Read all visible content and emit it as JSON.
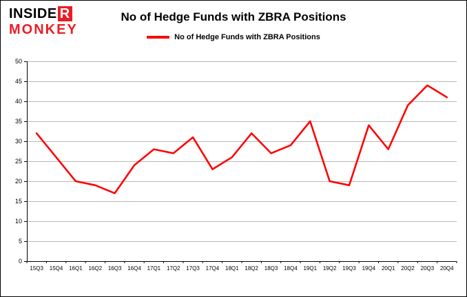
{
  "logo": {
    "insider_prefix": "INSIDE",
    "insider_boxed_letter": "R",
    "monkey": "MONKEY",
    "red": "#ed1c24"
  },
  "title": "No of Hedge Funds with ZBRA Positions",
  "legend": {
    "label": "No of Hedge Funds with ZBRA Positions",
    "color": "#ff0000"
  },
  "chart_data": {
    "type": "line",
    "title": "No of Hedge Funds with ZBRA Positions",
    "categories": [
      "15Q3",
      "15Q4",
      "16Q1",
      "16Q2",
      "16Q3",
      "16Q4",
      "17Q1",
      "17Q2",
      "17Q3",
      "17Q4",
      "18Q1",
      "18Q2",
      "18Q3",
      "18Q4",
      "19Q1",
      "19Q2",
      "19Q3",
      "19Q4",
      "20Q1",
      "20Q2",
      "20Q3",
      "20Q4"
    ],
    "series": [
      {
        "name": "No of Hedge Funds with ZBRA Positions",
        "color": "#ff0000",
        "values": [
          32,
          26,
          20,
          19,
          17,
          24,
          28,
          27,
          31,
          23,
          26,
          32,
          27,
          29,
          35,
          20,
          19,
          34,
          28,
          39,
          44,
          41
        ]
      }
    ],
    "xlabel": "",
    "ylabel": "",
    "ylim": [
      0,
      50
    ],
    "yticks": [
      0,
      5,
      10,
      15,
      20,
      25,
      30,
      35,
      40,
      45,
      50
    ],
    "grid": true,
    "gridline_color": "#b8b8b8",
    "legend_position": "top"
  }
}
